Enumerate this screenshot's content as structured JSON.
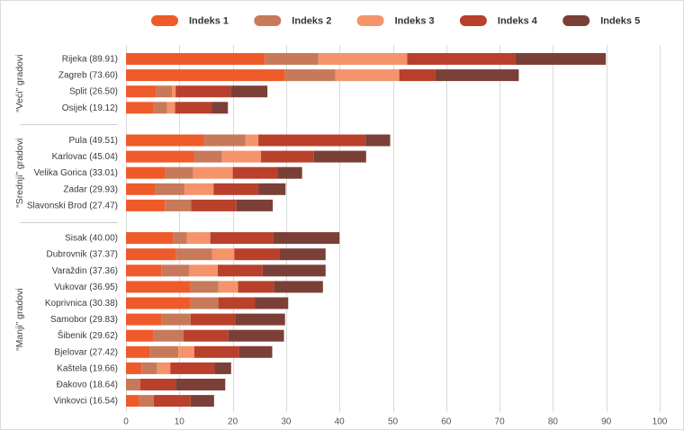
{
  "chart_data": {
    "type": "bar",
    "orientation": "horizontal",
    "stacked": true,
    "legend": "top",
    "grid": true,
    "xlim": [
      0,
      100
    ],
    "xticks": [
      0,
      10,
      20,
      30,
      40,
      50,
      60,
      70,
      80,
      90,
      100
    ],
    "groups": [
      {
        "label": "“Veći” gradovi",
        "categories": [
          "Rijeka (89.91)",
          "Zagreb (73.60)",
          "Split (26.50)",
          "Osijek (19.12)"
        ]
      },
      {
        "label": "“Srednji” gradovi",
        "categories": [
          "Pula (49.51)",
          "Karlovac (45.04)",
          "Velika Gorica (33.01)",
          "Zadar (29.93)",
          "Slavonski Brod (27.47)"
        ]
      },
      {
        "label": "“Manji” gradovi",
        "categories": [
          "Sisak (40.00)",
          "Dubrovnik (37.37)",
          "Varaždin (37.36)",
          "Vukovar (36.95)",
          "Koprivnica (30.38)",
          "Samobor (29.83)",
          "Šibenik (29.62)",
          "Bjelovar (27.42)",
          "Kaštela (19.66)",
          "Đakovo (18.64)",
          "Vinkovci (16.54)"
        ]
      }
    ],
    "series": [
      {
        "name": "Indeks 1",
        "color": "#EF5A2A",
        "values": [
          26.0,
          29.8,
          5.7,
          5.2,
          14.5,
          12.8,
          7.4,
          5.4,
          7.3,
          8.9,
          9.4,
          6.6,
          12.1,
          12.1,
          6.7,
          5.2,
          4.4,
          2.9,
          0,
          2.5
        ]
      },
      {
        "name": "Indeks 2",
        "color": "#C77A5A",
        "values": [
          10.0,
          9.4,
          2.9,
          2.5,
          7.9,
          5.2,
          5.2,
          5.6,
          4.9,
          2.5,
          6.7,
          5.2,
          5.2,
          5.2,
          5.4,
          5.6,
          5.4,
          2.9,
          2.7,
          2.7
        ]
      },
      {
        "name": "Indeks 3",
        "color": "#F5936A",
        "values": [
          16.7,
          12.0,
          0.7,
          1.5,
          2.4,
          7.3,
          7.4,
          5.4,
          0,
          4.4,
          4.2,
          5.4,
          3.7,
          0,
          0,
          0,
          3.0,
          2.5,
          0,
          0
        ]
      },
      {
        "name": "Indeks 4",
        "color": "#B9402B",
        "values": [
          20.2,
          6.7,
          10.3,
          6.9,
          20.1,
          9.9,
          8.4,
          8.4,
          8.5,
          11.8,
          8.4,
          8.4,
          6.7,
          6.9,
          8.4,
          8.4,
          8.4,
          8.3,
          6.6,
          6.9
        ]
      },
      {
        "name": "Indeks 5",
        "color": "#7A4037",
        "values": [
          17.0,
          15.7,
          6.9,
          3.0,
          4.6,
          9.8,
          4.6,
          5.1,
          6.8,
          12.4,
          8.7,
          11.8,
          9.2,
          6.2,
          9.3,
          10.4,
          6.2,
          3.1,
          9.3,
          4.4
        ]
      }
    ]
  }
}
